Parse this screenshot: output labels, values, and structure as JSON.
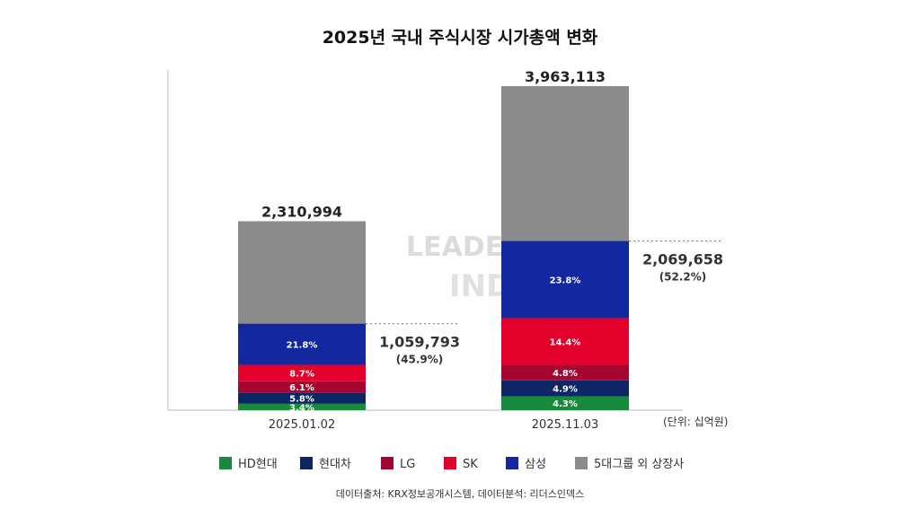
{
  "chart_data": {
    "type": "bar",
    "stacked": true,
    "title": "2025년 국내 주식시장 시가총액 변화",
    "unit_label": "(단위: 십억원)",
    "source": "데이터출처: KRX정보공개시스템, 데이터분석: 리더스인덱스",
    "watermark": "LEADERS INDEX 기업분석연구소",
    "categories": [
      "2025.01.02",
      "2025.11.03"
    ],
    "totals": [
      2310994,
      3963113
    ],
    "totals_label": [
      "2,310,994",
      "3,963,113"
    ],
    "group5_totals": [
      1059793,
      2069658
    ],
    "group5_label": [
      "1,059,793",
      "2,069,658"
    ],
    "group5_pct_label": [
      "(45.9%)",
      "(52.2%)"
    ],
    "ylim": [
      0,
      4160000
    ],
    "series": [
      {
        "name": "HD현대",
        "color": "#178a3c",
        "values_pct": [
          3.4,
          4.3
        ],
        "labels": [
          "3.4%",
          "4.3%"
        ]
      },
      {
        "name": "현대차",
        "color": "#0e2566",
        "values_pct": [
          5.8,
          4.9
        ],
        "labels": [
          "5.8%",
          "4.9%"
        ]
      },
      {
        "name": "LG",
        "color": "#a5052f",
        "values_pct": [
          6.1,
          4.8
        ],
        "labels": [
          "6.1%",
          "4.8%"
        ]
      },
      {
        "name": "SK",
        "color": "#e3002a",
        "values_pct": [
          8.7,
          14.4
        ],
        "labels": [
          "8.7%",
          "14.4%"
        ]
      },
      {
        "name": "삼성",
        "color": "#13279e",
        "values_pct": [
          21.8,
          23.8
        ],
        "labels": [
          "21.8%",
          "23.8%"
        ]
      },
      {
        "name": "5대그룹 외 상장사",
        "color": "#8c8c8c",
        "values_pct": [
          54.1,
          47.8
        ],
        "labels": [
          "",
          ""
        ]
      }
    ]
  }
}
